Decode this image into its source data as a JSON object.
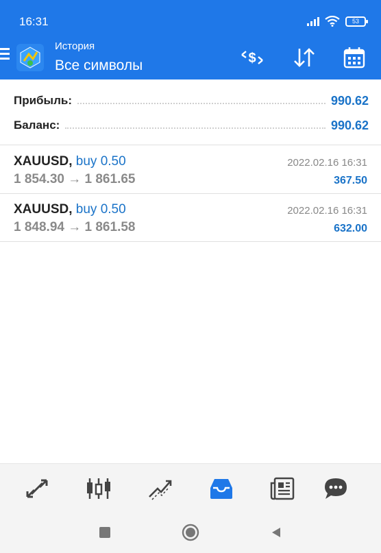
{
  "status_bar": {
    "time": "16:31",
    "battery": "53"
  },
  "header": {
    "subtitle": "История",
    "title": "Все символы"
  },
  "summary": {
    "profit_label": "Прибыль:",
    "profit_value": "990.62",
    "balance_label": "Баланс:",
    "balance_value": "990.62"
  },
  "deals": [
    {
      "symbol": "XAUUSD,",
      "side": "buy 0.50",
      "date": "2022.02.16 16:31",
      "prices": "1 854.30 → 1 861.65",
      "profit": "367.50"
    },
    {
      "symbol": "XAUUSD,",
      "side": "buy 0.50",
      "date": "2022.02.16 16:31",
      "prices": "1 848.94 → 1 861.58",
      "profit": "632.00"
    }
  ],
  "colors": {
    "accent": "#1f78e8",
    "value_blue": "#1a73c8",
    "nav_icon": "#444444"
  },
  "toolbar_icons": [
    "exchange-icon",
    "sort-icon",
    "calendar-icon"
  ],
  "bottom_nav_icons": [
    "quotes-icon",
    "chart-icon",
    "trade-icon",
    "history-icon",
    "news-icon",
    "chat-icon"
  ],
  "bottom_nav_active": "history-icon"
}
